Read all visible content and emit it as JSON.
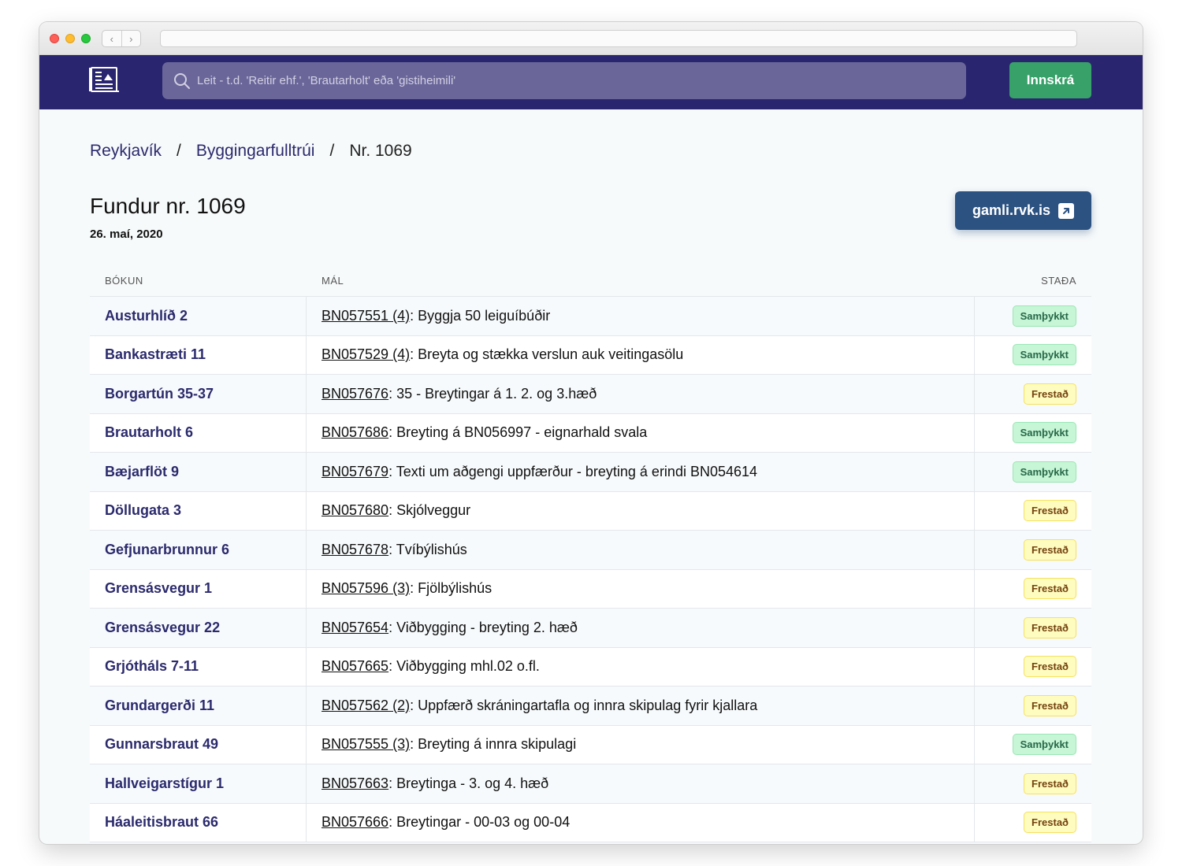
{
  "header": {
    "search_placeholder": "Leit - t.d. 'Reitir ehf.', 'Brautarholt' eða 'gistiheimili'",
    "login_label": "Innskrá"
  },
  "breadcrumb": {
    "city": "Reykjavík",
    "office": "Byggingarfulltrúi",
    "current": "Nr. 1069",
    "separator": "/"
  },
  "meeting": {
    "title": "Fundur nr. 1069",
    "date": "26. maí, 2020",
    "external_link_label": "gamli.rvk.is"
  },
  "table": {
    "headers": {
      "bokun": "BÓKUN",
      "mal": "MÁL",
      "stada": "STAÐA"
    },
    "rows": [
      {
        "address": "Austurhlíð 2",
        "case_id": "BN057551 (4)",
        "description": ": Byggja 50 leiguíbúðir",
        "status": "Samþykkt",
        "status_type": "approved"
      },
      {
        "address": "Bankastræti 11",
        "case_id": "BN057529 (4)",
        "description": ": Breyta og stækka verslun auk veitingasölu",
        "status": "Samþykkt",
        "status_type": "approved"
      },
      {
        "address": "Borgartún 35-37",
        "case_id": "BN057676 ",
        "description": ": 35 - Breytingar á 1. 2. og 3.hæð",
        "status": "Frestað",
        "status_type": "deferred"
      },
      {
        "address": "Brautarholt 6",
        "case_id": "BN057686 ",
        "description": ": Breyting á BN056997 - eignarhald svala",
        "status": "Samþykkt",
        "status_type": "approved"
      },
      {
        "address": "Bæjarflöt 9",
        "case_id": "BN057679 ",
        "description": ": Texti um aðgengi uppfærður - breyting á erindi BN054614",
        "status": "Samþykkt",
        "status_type": "approved"
      },
      {
        "address": "Döllugata 3",
        "case_id": "BN057680 ",
        "description": ": Skjólveggur",
        "status": "Frestað",
        "status_type": "deferred"
      },
      {
        "address": "Gefjunarbrunnur 6",
        "case_id": "BN057678 ",
        "description": ": Tvíbýlishús",
        "status": "Frestað",
        "status_type": "deferred"
      },
      {
        "address": "Grensásvegur 1",
        "case_id": "BN057596 (3)",
        "description": ": Fjölbýlishús",
        "status": "Frestað",
        "status_type": "deferred"
      },
      {
        "address": "Grensásvegur 22",
        "case_id": "BN057654 ",
        "description": ": Viðbygging - breyting 2. hæð",
        "status": "Frestað",
        "status_type": "deferred"
      },
      {
        "address": "Grjótháls 7-11",
        "case_id": "BN057665 ",
        "description": ": Viðbygging mhl.02 o.fl.",
        "status": "Frestað",
        "status_type": "deferred"
      },
      {
        "address": "Grundargerði 11",
        "case_id": "BN057562 (2)",
        "description": ": Uppfærð skráningartafla og innra skipulag fyrir kjallara",
        "status": "Frestað",
        "status_type": "deferred"
      },
      {
        "address": "Gunnarsbraut 49",
        "case_id": "BN057555 (3)",
        "description": ": Breyting á innra skipulagi",
        "status": "Samþykkt",
        "status_type": "approved"
      },
      {
        "address": "Hallveigarstígur 1",
        "case_id": "BN057663 ",
        "description": ": Breytinga - 3. og 4. hæð",
        "status": "Frestað",
        "status_type": "deferred"
      },
      {
        "address": "Háaleitisbraut 66",
        "case_id": "BN057666 ",
        "description": ": Breytingar - 00-03 og 00-04",
        "status": "Frestað",
        "status_type": "deferred"
      }
    ]
  },
  "colors": {
    "appbar": "#29256f",
    "search_bg": "#6a6699",
    "login_green": "#38a169",
    "link_navy": "#2b2a6d",
    "external_button": "#2c5282",
    "approved_bg": "#c6f6d5",
    "deferred_bg": "#fefcbf"
  },
  "icons": [
    "logo-icon",
    "search-icon",
    "external-link-icon",
    "chevron-left-icon",
    "chevron-right-icon"
  ]
}
